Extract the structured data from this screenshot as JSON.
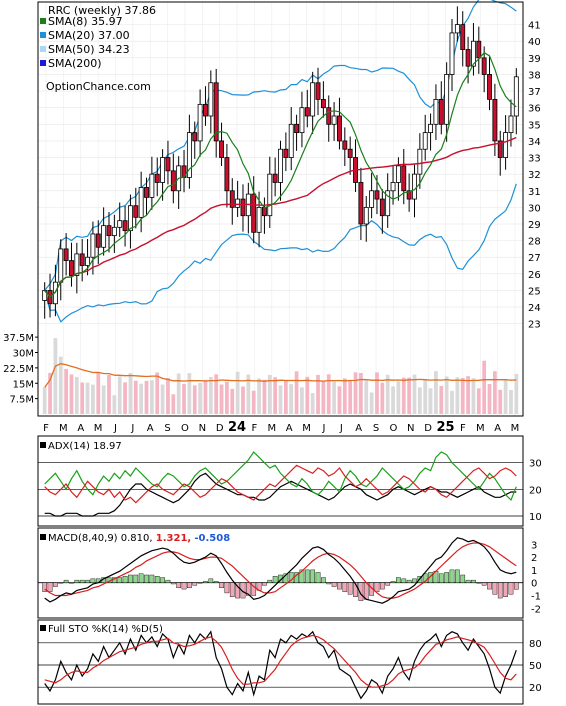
{
  "chart_data": [
    {
      "type": "candlestick",
      "title": "RRC (weekly) 37.86",
      "watermark": "OptionChance.com",
      "legend": [
        {
          "label": "SMA(8) 35.97",
          "color": "#1a7f1a"
        },
        {
          "label": "SMA(20) 37.00",
          "color": "#1e90d8"
        },
        {
          "label": "SMA(50) 34.23",
          "color": "#a9d8f0"
        },
        {
          "label": "SMA(200)",
          "color": "#1a1ad8"
        }
      ],
      "y_ticks": [
        23,
        24,
        25,
        26,
        27,
        28,
        29,
        30,
        31,
        32,
        33,
        34,
        35,
        36,
        37,
        38,
        39,
        40,
        41
      ],
      "ylim": [
        22.5,
        42
      ],
      "x_labels": [
        "F",
        "M",
        "A",
        "M",
        "J",
        "J",
        "A",
        "S",
        "O",
        "N",
        "D",
        "24",
        "F",
        "M",
        "A",
        "M",
        "J",
        "J",
        "A",
        "S",
        "O",
        "N",
        "D",
        "25",
        "F",
        "M",
        "A",
        "M"
      ],
      "close": [
        25.0,
        24.2,
        25.5,
        27.5,
        26.8,
        25.9,
        27.2,
        26.5,
        27.0,
        28.4,
        27.6,
        28.9,
        28.3,
        28.8,
        29.2,
        28.6,
        30.1,
        29.4,
        31.2,
        30.6,
        32.0,
        31.5,
        33.0,
        32.2,
        31.0,
        32.5,
        31.8,
        34.5,
        34.0,
        36.2,
        35.5,
        37.5,
        34.0,
        33.0,
        31.0,
        30.0,
        30.5,
        29.5,
        30.8,
        28.5,
        30.0,
        29.5,
        32.0,
        31.5,
        33.5,
        33.0,
        35.0,
        34.5,
        36.0,
        35.5,
        37.5,
        36.5,
        36.0,
        35.0,
        35.5,
        34.0,
        33.5,
        33.0,
        31.5,
        29.0,
        30.0,
        31.0,
        30.5,
        29.5,
        31.0,
        31.5,
        32.5,
        31.0,
        30.5,
        32.0,
        33.5,
        34.5,
        35.0,
        36.5,
        35.0,
        38.0,
        40.5,
        41.0,
        39.5,
        38.5,
        40.0,
        39.0,
        38.0,
        36.5,
        34.0,
        33.0,
        34.5,
        35.5,
        37.86
      ],
      "volume_axis": [
        "37.5M",
        "30M",
        "22.5M",
        "15M",
        "7.5M"
      ],
      "volume_max_millions": 40
    },
    {
      "type": "line",
      "title": "ADX(14) 18.97",
      "y_ticks": [
        10,
        20,
        30
      ],
      "ylim": [
        7,
        37
      ],
      "series": [
        {
          "name": "ADX(14) 18.97",
          "color": "#000000",
          "values": [
            11,
            11,
            10,
            10,
            11,
            11,
            11,
            10,
            10,
            10,
            11,
            11,
            11,
            12,
            14,
            17,
            20,
            22,
            22,
            20,
            19,
            18,
            17,
            16,
            15,
            16,
            18,
            20,
            23,
            25,
            26,
            24,
            22,
            21,
            20,
            19,
            18,
            18,
            17,
            17,
            16,
            16,
            17,
            19,
            21,
            22,
            23,
            22,
            21,
            20,
            19,
            18,
            17,
            16,
            17,
            19,
            21,
            22,
            21,
            20,
            18,
            17,
            16,
            17,
            18,
            20,
            21,
            20,
            19,
            18,
            19,
            20,
            21,
            20,
            19,
            19,
            18,
            17,
            18,
            19,
            20,
            21,
            19,
            18,
            17,
            17,
            18,
            19,
            19
          ]
        },
        {
          "color": "#19a019",
          "values": [
            22,
            24,
            26,
            23,
            20,
            24,
            27,
            23,
            20,
            18,
            22,
            25,
            23,
            26,
            24,
            27,
            25,
            28,
            26,
            24,
            22,
            21,
            24,
            26,
            25,
            23,
            21,
            22,
            25,
            27,
            28,
            26,
            24,
            22,
            23,
            25,
            27,
            29,
            31,
            34,
            32,
            30,
            28,
            29,
            26,
            24,
            22,
            21,
            24,
            22,
            19,
            18,
            20,
            23,
            21,
            19,
            24,
            27,
            25,
            22,
            21,
            23,
            25,
            28,
            26,
            24,
            22,
            20,
            21,
            23,
            26,
            28,
            27,
            32,
            34,
            33,
            30,
            28,
            26,
            24,
            22,
            20,
            23,
            26,
            24,
            21,
            18,
            16,
            21
          ]
        },
        {
          "color": "#d81e1e",
          "values": [
            21,
            19,
            18,
            20,
            22,
            19,
            17,
            20,
            23,
            21,
            19,
            18,
            20,
            17,
            19,
            16,
            17,
            15,
            17,
            19,
            21,
            22,
            20,
            19,
            18,
            20,
            22,
            21,
            19,
            17,
            18,
            20,
            22,
            24,
            23,
            21,
            19,
            18,
            17,
            16,
            18,
            20,
            22,
            21,
            23,
            25,
            27,
            29,
            28,
            27,
            26,
            28,
            27,
            25,
            26,
            28,
            25,
            23,
            21,
            22,
            24,
            22,
            20,
            18,
            19,
            21,
            23,
            25,
            24,
            22,
            20,
            19,
            21,
            20,
            18,
            17,
            19,
            21,
            23,
            25,
            27,
            28,
            26,
            24,
            25,
            27,
            28,
            27,
            25
          ]
        }
      ]
    },
    {
      "type": "bar_line",
      "title": "MACD(8,40,9) 0.810, 1.321, -0.508",
      "labels": [
        "MACD(8,40,9) 0.810,",
        "1.321,",
        "-0.508"
      ],
      "label_colors": [
        "#000000",
        "#d81e1e",
        "#1e5ad8"
      ],
      "y_ticks": [
        "3",
        "2",
        "1",
        "0",
        "-1",
        "-2"
      ],
      "y_tick_values": [
        3,
        2,
        1,
        0,
        -1,
        -2
      ],
      "ylim": [
        -2.6,
        3.8
      ],
      "macd": [
        -1.2,
        -1.5,
        -1.3,
        -1.0,
        -0.8,
        -0.9,
        -0.6,
        -0.5,
        -0.4,
        -0.1,
        0.0,
        0.3,
        0.5,
        0.7,
        0.9,
        1.2,
        1.5,
        1.8,
        2.1,
        2.3,
        2.5,
        2.6,
        2.7,
        2.6,
        2.3,
        1.9,
        1.6,
        1.5,
        1.6,
        1.8,
        2.0,
        2.3,
        2.1,
        1.5,
        0.8,
        0.2,
        -0.3,
        -0.7,
        -0.9,
        -1.3,
        -1.2,
        -1.0,
        -0.6,
        -0.2,
        0.2,
        0.6,
        1.0,
        1.4,
        1.9,
        2.3,
        2.7,
        2.8,
        2.6,
        2.2,
        1.9,
        1.5,
        1.0,
        0.5,
        -0.1,
        -0.9,
        -1.3,
        -1.4,
        -1.5,
        -1.6,
        -1.4,
        -1.1,
        -0.7,
        -0.6,
        -0.5,
        -0.2,
        0.3,
        0.8,
        1.3,
        1.8,
        2.0,
        2.5,
        3.1,
        3.5,
        3.4,
        3.2,
        3.3,
        3.1,
        2.8,
        2.3,
        1.6,
        1.0,
        0.8,
        0.7,
        0.81
      ],
      "signal": [
        -0.5,
        -0.8,
        -1.0,
        -1.0,
        -1.0,
        -0.9,
        -0.8,
        -0.7,
        -0.6,
        -0.4,
        -0.3,
        -0.1,
        0.1,
        0.3,
        0.5,
        0.7,
        0.9,
        1.2,
        1.4,
        1.7,
        1.9,
        2.1,
        2.3,
        2.4,
        2.4,
        2.3,
        2.1,
        1.9,
        1.8,
        1.8,
        1.9,
        2.0,
        2.0,
        1.9,
        1.6,
        1.3,
        0.9,
        0.5,
        0.1,
        -0.3,
        -0.6,
        -0.8,
        -0.8,
        -0.7,
        -0.4,
        -0.1,
        0.2,
        0.6,
        0.9,
        1.3,
        1.7,
        2.0,
        2.2,
        2.3,
        2.2,
        2.0,
        1.7,
        1.4,
        1.0,
        0.5,
        0.0,
        -0.4,
        -0.8,
        -1.1,
        -1.2,
        -1.2,
        -1.1,
        -0.9,
        -0.7,
        -0.5,
        -0.2,
        0.1,
        0.5,
        0.9,
        1.3,
        1.7,
        2.1,
        2.5,
        2.8,
        3.0,
        3.1,
        3.1,
        3.0,
        2.8,
        2.5,
        2.2,
        1.9,
        1.6,
        1.32
      ]
    },
    {
      "type": "line",
      "title": "Full STO %K(14) %D(5)",
      "y_ticks": [
        20,
        50,
        80
      ],
      "ylim": [
        0,
        100
      ],
      "series": [
        {
          "name": "%K(14)",
          "color": "#000000",
          "values": [
            25,
            15,
            30,
            55,
            40,
            30,
            50,
            35,
            45,
            65,
            55,
            75,
            60,
            70,
            80,
            65,
            85,
            70,
            90,
            80,
            88,
            75,
            92,
            85,
            60,
            78,
            65,
            90,
            80,
            92,
            85,
            95,
            60,
            45,
            20,
            10,
            25,
            15,
            40,
            10,
            35,
            30,
            70,
            60,
            85,
            80,
            90,
            85,
            92,
            88,
            95,
            80,
            75,
            60,
            70,
            45,
            40,
            35,
            20,
            5,
            15,
            30,
            25,
            12,
            35,
            45,
            60,
            40,
            30,
            55,
            70,
            80,
            85,
            92,
            75,
            90,
            95,
            92,
            80,
            70,
            85,
            75,
            65,
            45,
            20,
            12,
            35,
            50,
            70
          ]
        },
        {
          "name": "%D(5)",
          "color": "#d81e1e",
          "values": [
            30,
            28,
            26,
            30,
            36,
            40,
            42,
            40,
            40,
            46,
            50,
            56,
            60,
            64,
            68,
            70,
            72,
            74,
            78,
            80,
            82,
            82,
            84,
            86,
            80,
            78,
            75,
            76,
            78,
            82,
            86,
            88,
            82,
            74,
            60,
            44,
            32,
            24,
            24,
            26,
            26,
            28,
            36,
            44,
            56,
            66,
            76,
            82,
            86,
            88,
            90,
            88,
            84,
            78,
            72,
            64,
            56,
            48,
            40,
            30,
            24,
            20,
            20,
            22,
            24,
            30,
            38,
            42,
            44,
            46,
            52,
            62,
            70,
            78,
            80,
            84,
            86,
            88,
            86,
            84,
            82,
            78,
            74,
            64,
            52,
            40,
            32,
            30,
            38
          ]
        }
      ]
    }
  ]
}
